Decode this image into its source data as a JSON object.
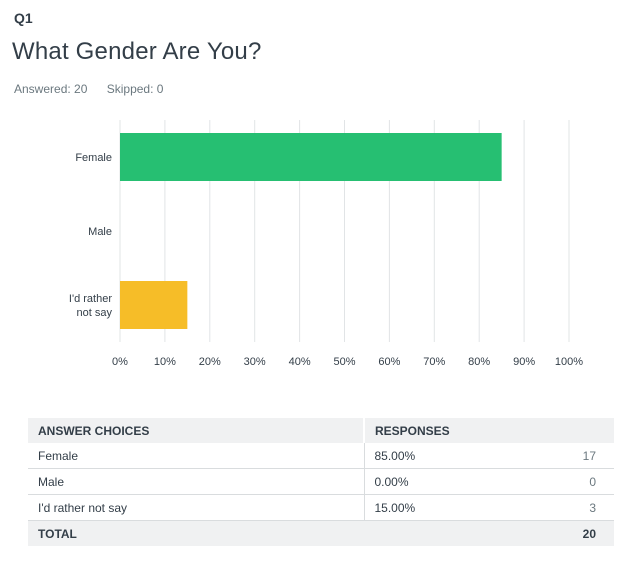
{
  "question": {
    "number": "Q1",
    "title": "What Gender Are You?",
    "answered": "Answered: 20",
    "skipped": "Skipped: 0"
  },
  "chart_data": {
    "type": "bar",
    "orientation": "horizontal",
    "categories": [
      "Female",
      "Male",
      "I'd rather not say"
    ],
    "values": [
      85,
      0,
      15
    ],
    "xlim": [
      0,
      100
    ],
    "xticks": [
      "0%",
      "10%",
      "20%",
      "30%",
      "40%",
      "50%",
      "60%",
      "70%",
      "80%",
      "90%",
      "100%"
    ],
    "grid": true,
    "colors": [
      "#26bf72",
      "#3aa7e0",
      "#f6bd28"
    ]
  },
  "table": {
    "headers": [
      "ANSWER CHOICES",
      "RESPONSES",
      ""
    ],
    "rows": [
      {
        "choice": "Female",
        "percent": "85.00%",
        "count": "17"
      },
      {
        "choice": "Male",
        "percent": "0.00%",
        "count": "0"
      },
      {
        "choice": "I'd rather not say",
        "percent": "15.00%",
        "count": "3"
      }
    ],
    "total_label": "TOTAL",
    "total_count": "20"
  }
}
